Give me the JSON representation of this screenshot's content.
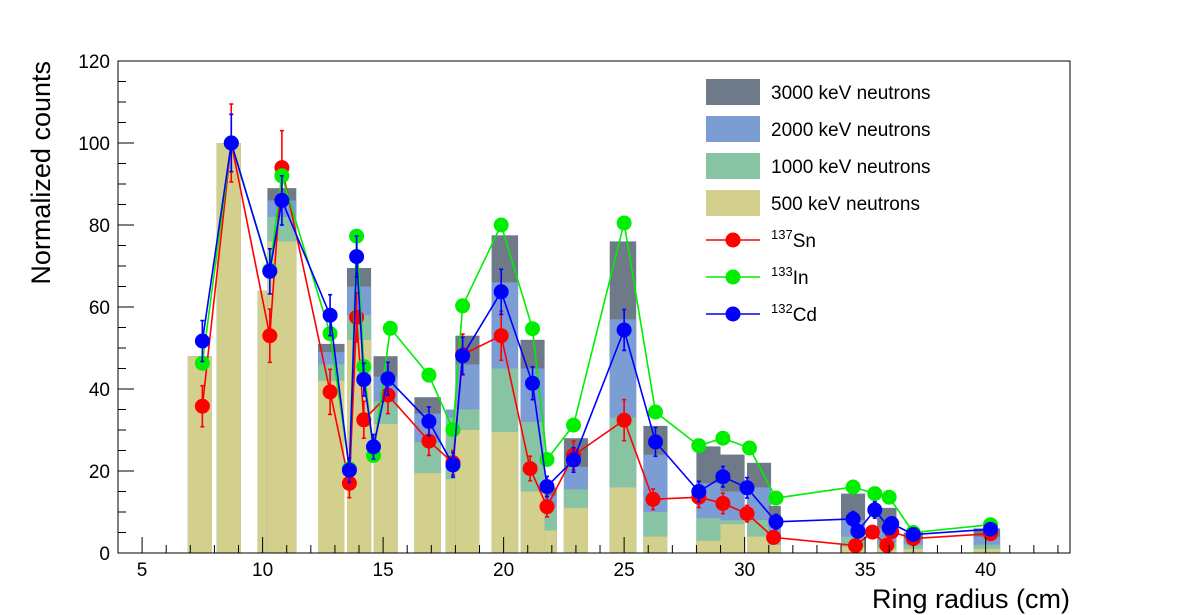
{
  "chart_data": {
    "type": "bar",
    "title": "",
    "xlabel": "Ring radius (cm)",
    "ylabel": "Normalized counts",
    "xlim": [
      4,
      43.5
    ],
    "ylim": [
      0,
      120
    ],
    "xticks": [
      5,
      10,
      15,
      20,
      25,
      30,
      35,
      40
    ],
    "yticks": [
      0,
      20,
      40,
      60,
      80,
      100,
      120
    ],
    "grid": false,
    "legend_position": "top-right",
    "legend": [
      {
        "kind": "box",
        "label": "3000 keV neutrons",
        "color": "#6e7a87"
      },
      {
        "kind": "box",
        "label": "2000 keV neutrons",
        "color": "#7c9cd4"
      },
      {
        "kind": "box",
        "label": "1000 keV neutrons",
        "color": "#88c4a4"
      },
      {
        "kind": "box",
        "label": "500 keV neutrons",
        "color": "#d3cf8c"
      },
      {
        "kind": "marker",
        "mass": "137",
        "element": "Sn",
        "color": "#ff0000"
      },
      {
        "kind": "marker",
        "mass": "133",
        "element": "In",
        "color": "#00ee00"
      },
      {
        "kind": "marker",
        "mass": "132",
        "element": "Cd",
        "color": "#0000ff"
      }
    ],
    "bar_series": [
      {
        "name": "500 keV neutrons",
        "color": "#d3cf8c"
      },
      {
        "name": "1000 keV neutrons",
        "color": "#88c4a4"
      },
      {
        "name": "2000 keV neutrons",
        "color": "#7c9cd4"
      },
      {
        "name": "3000 keV neutrons",
        "color": "#6e7a87"
      }
    ],
    "bars": [
      {
        "x0": 6.9,
        "x1": 7.9,
        "values": [
          48,
          48,
          48,
          48
        ]
      },
      {
        "x0": 8.1,
        "x1": 9.1,
        "values": [
          100,
          100,
          100,
          100
        ]
      },
      {
        "x0": 9.8,
        "x1": 10.8,
        "values": [
          64,
          64,
          64,
          64
        ]
      },
      {
        "x0": 10.2,
        "x1": 11.4,
        "values": [
          76,
          82,
          86,
          89
        ]
      },
      {
        "x0": 12.3,
        "x1": 13.4,
        "values": [
          42,
          46,
          49,
          51
        ]
      },
      {
        "x0": 13.5,
        "x1": 14.5,
        "values": [
          52,
          58,
          65,
          69.5
        ]
      },
      {
        "x0": 14.6,
        "x1": 15.6,
        "values": [
          31.5,
          37,
          43,
          48
        ]
      },
      {
        "x0": 16.3,
        "x1": 17.4,
        "values": [
          19.5,
          27,
          34,
          38
        ]
      },
      {
        "x0": 17.6,
        "x1": 18.9,
        "values": [
          18,
          33,
          35,
          28
        ]
      },
      {
        "x0": 18.0,
        "x1": 19.0,
        "values": [
          30,
          35,
          46,
          53
        ]
      },
      {
        "x0": 19.5,
        "x1": 20.6,
        "values": [
          29.5,
          45,
          66,
          77.5
        ]
      },
      {
        "x0": 20.7,
        "x1": 21.7,
        "values": [
          15,
          32,
          45,
          52
        ]
      },
      {
        "x0": 21.7,
        "x1": 22.2,
        "values": [
          5.5,
          11,
          14,
          16
        ]
      },
      {
        "x0": 22.5,
        "x1": 23.5,
        "values": [
          11,
          15.5,
          21,
          28
        ]
      },
      {
        "x0": 24.4,
        "x1": 25.5,
        "values": [
          16,
          33,
          57,
          76
        ]
      },
      {
        "x0": 25.8,
        "x1": 26.8,
        "values": [
          4,
          10,
          24,
          31
        ]
      },
      {
        "x0": 28.0,
        "x1": 29.0,
        "values": [
          3,
          8.5,
          17,
          26
        ]
      },
      {
        "x0": 29.0,
        "x1": 30.0,
        "values": [
          7,
          8,
          15,
          24
        ]
      },
      {
        "x0": 30.1,
        "x1": 31.1,
        "values": [
          4,
          8,
          16,
          22
        ]
      },
      {
        "x0": 31.0,
        "x1": 31.5,
        "values": [
          2,
          4,
          8,
          11.5
        ]
      },
      {
        "x0": 34.0,
        "x1": 35.0,
        "values": [
          1.5,
          4,
          8,
          14.5
        ]
      },
      {
        "x0": 35.5,
        "x1": 36.3,
        "values": [
          1,
          2.5,
          6,
          11
        ]
      },
      {
        "x0": 36.6,
        "x1": 37.4,
        "values": [
          1,
          2,
          3.5,
          5
        ]
      },
      {
        "x0": 39.5,
        "x1": 40.6,
        "values": [
          1,
          2,
          4,
          6
        ]
      }
    ],
    "series": [
      {
        "mass": "137",
        "element": "Sn",
        "color": "#ff0000",
        "points": [
          {
            "x": 7.5,
            "y": 35.8,
            "err": 5
          },
          {
            "x": 8.7,
            "y": 100,
            "err": 9.5
          },
          {
            "x": 10.3,
            "y": 53,
            "err": 6.5
          },
          {
            "x": 10.8,
            "y": 94,
            "err": 9
          },
          {
            "x": 12.8,
            "y": 39.3,
            "err": 5.5
          },
          {
            "x": 13.6,
            "y": 17,
            "err": 3.5
          },
          {
            "x": 13.9,
            "y": 57.5,
            "err": 6
          },
          {
            "x": 14.2,
            "y": 32.5,
            "err": 4.5
          },
          {
            "x": 15.2,
            "y": 38.5,
            "err": 4.5
          },
          {
            "x": 16.9,
            "y": 27.3,
            "err": 3.5
          },
          {
            "x": 17.9,
            "y": 22,
            "err": 3
          },
          {
            "x": 18.3,
            "y": 48.4,
            "err": 5
          },
          {
            "x": 19.9,
            "y": 53,
            "err": 6
          },
          {
            "x": 21.1,
            "y": 20.6,
            "err": 3
          },
          {
            "x": 21.8,
            "y": 11.3,
            "err": 2.5
          },
          {
            "x": 22.9,
            "y": 23.8,
            "err": 3.5
          },
          {
            "x": 25.0,
            "y": 32.4,
            "err": 5
          },
          {
            "x": 26.2,
            "y": 13.1,
            "err": 2.5
          },
          {
            "x": 28.1,
            "y": 13.6,
            "err": 2.5
          },
          {
            "x": 29.1,
            "y": 12.1,
            "err": 2.5
          },
          {
            "x": 30.1,
            "y": 9.6,
            "err": 2
          },
          {
            "x": 31.2,
            "y": 3.8,
            "err": 1.5
          },
          {
            "x": 34.6,
            "y": 1.8,
            "err": 1
          },
          {
            "x": 35.3,
            "y": 5.1,
            "err": 1.5
          },
          {
            "x": 35.9,
            "y": 1.9,
            "err": 1
          },
          {
            "x": 36.1,
            "y": 5.2,
            "err": 1.5
          },
          {
            "x": 37.0,
            "y": 3.5,
            "err": 1.2
          },
          {
            "x": 40.2,
            "y": 4.7,
            "err": 1.2
          }
        ]
      },
      {
        "mass": "133",
        "element": "In",
        "color": "#00ee00",
        "points": [
          {
            "x": 7.5,
            "y": 46.3
          },
          {
            "x": 8.7,
            "y": 100
          },
          {
            "x": 10.3,
            "y": 69
          },
          {
            "x": 10.8,
            "y": 92
          },
          {
            "x": 12.8,
            "y": 53.5
          },
          {
            "x": 13.6,
            "y": 20.5
          },
          {
            "x": 13.9,
            "y": 77.3
          },
          {
            "x": 14.2,
            "y": 45.5
          },
          {
            "x": 14.6,
            "y": 23.8
          },
          {
            "x": 15.3,
            "y": 54.8
          },
          {
            "x": 16.9,
            "y": 43.4
          },
          {
            "x": 17.9,
            "y": 30.1
          },
          {
            "x": 18.3,
            "y": 60.3
          },
          {
            "x": 19.9,
            "y": 80
          },
          {
            "x": 21.2,
            "y": 54.7
          },
          {
            "x": 21.8,
            "y": 22.8
          },
          {
            "x": 22.9,
            "y": 31.2
          },
          {
            "x": 25.0,
            "y": 80.5
          },
          {
            "x": 26.3,
            "y": 34.4
          },
          {
            "x": 28.1,
            "y": 26.2
          },
          {
            "x": 29.1,
            "y": 28
          },
          {
            "x": 30.2,
            "y": 25.6
          },
          {
            "x": 31.3,
            "y": 13.4
          },
          {
            "x": 34.5,
            "y": 16.1
          },
          {
            "x": 35.4,
            "y": 14.5
          },
          {
            "x": 36.0,
            "y": 13.6
          },
          {
            "x": 37.0,
            "y": 5
          },
          {
            "x": 40.2,
            "y": 6.9
          }
        ]
      },
      {
        "mass": "132",
        "element": "Cd",
        "color": "#0000ff",
        "points": [
          {
            "x": 7.5,
            "y": 51.7,
            "err": 5
          },
          {
            "x": 8.7,
            "y": 100,
            "err": 7
          },
          {
            "x": 10.3,
            "y": 68.7,
            "err": 5.5
          },
          {
            "x": 10.8,
            "y": 86,
            "err": 6
          },
          {
            "x": 12.8,
            "y": 58,
            "err": 5
          },
          {
            "x": 13.6,
            "y": 20.2,
            "err": 3
          },
          {
            "x": 13.9,
            "y": 72.3,
            "err": 5
          },
          {
            "x": 14.2,
            "y": 42.3,
            "err": 4
          },
          {
            "x": 14.6,
            "y": 25.9,
            "err": 3
          },
          {
            "x": 15.2,
            "y": 42.5,
            "err": 4
          },
          {
            "x": 16.9,
            "y": 32.1,
            "err": 3.5
          },
          {
            "x": 17.9,
            "y": 21.5,
            "err": 3
          },
          {
            "x": 18.3,
            "y": 48.1,
            "err": 4.5
          },
          {
            "x": 19.9,
            "y": 63.7,
            "err": 5.5
          },
          {
            "x": 21.2,
            "y": 41.4,
            "err": 4
          },
          {
            "x": 21.8,
            "y": 16.2,
            "err": 2.5
          },
          {
            "x": 22.9,
            "y": 22.7,
            "err": 3
          },
          {
            "x": 25.0,
            "y": 54.4,
            "err": 5
          },
          {
            "x": 26.3,
            "y": 27.1,
            "err": 3.5
          },
          {
            "x": 28.1,
            "y": 15,
            "err": 2.5
          },
          {
            "x": 29.1,
            "y": 18.6,
            "err": 2.5
          },
          {
            "x": 30.1,
            "y": 15.9,
            "err": 2.5
          },
          {
            "x": 31.3,
            "y": 7.6,
            "err": 1.8
          },
          {
            "x": 34.5,
            "y": 8.3,
            "err": 1.8
          },
          {
            "x": 34.7,
            "y": 5.3,
            "err": 1.5
          },
          {
            "x": 35.4,
            "y": 10.5,
            "err": 2
          },
          {
            "x": 36.0,
            "y": 6.1,
            "err": 1.5
          },
          {
            "x": 36.1,
            "y": 7.2,
            "err": 1.5
          },
          {
            "x": 37.0,
            "y": 4.5,
            "err": 1.2
          },
          {
            "x": 40.2,
            "y": 5.8,
            "err": 1.2
          }
        ]
      }
    ]
  }
}
